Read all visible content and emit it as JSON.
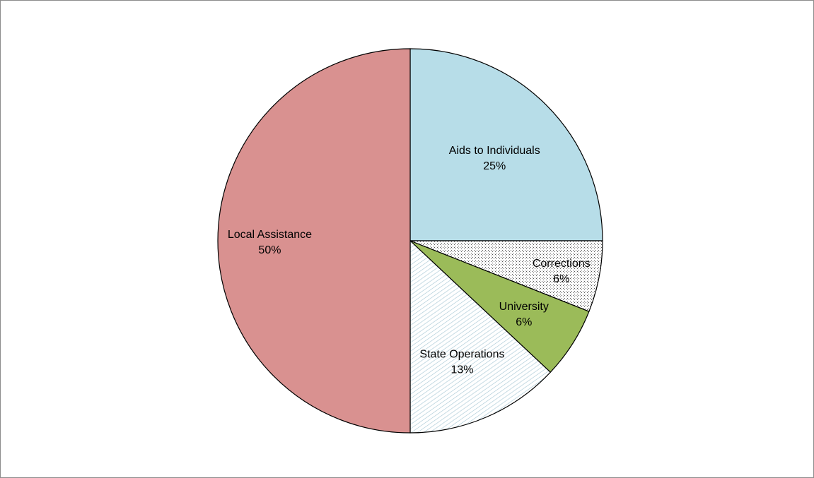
{
  "chart_data": {
    "type": "pie",
    "title": "",
    "slices": [
      {
        "label": "Aids to Individuals",
        "value": 25,
        "value_label": "25%",
        "color": "#b7dde8",
        "pattern": "none"
      },
      {
        "label": "Corrections",
        "value": 6,
        "value_label": "6%",
        "color": "#ffffff",
        "pattern": "dots"
      },
      {
        "label": "University",
        "value": 6,
        "value_label": "6%",
        "color": "#9bbb59",
        "pattern": "none"
      },
      {
        "label": "State Operations",
        "value": 13,
        "value_label": "13%",
        "color": "#ffffff",
        "pattern": "diagonal-lines"
      },
      {
        "label": "Local Assistance",
        "value": 50,
        "value_label": "50%",
        "color": "#d99190",
        "pattern": "none"
      }
    ],
    "start_angle": "12 o'clock",
    "direction": "clockwise",
    "legend": "none",
    "labels_inside": true
  }
}
